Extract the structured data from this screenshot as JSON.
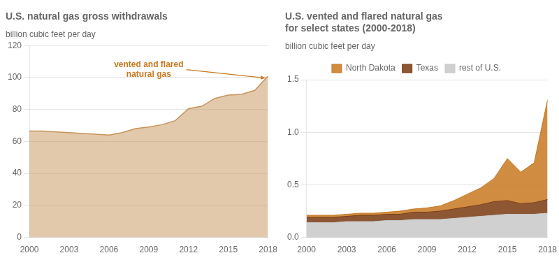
{
  "chart_data": [
    {
      "type": "area",
      "title": "U.S. natural gas gross withdrawals",
      "subtitle": "billion cubic feet per day",
      "x": [
        2000,
        2001,
        2002,
        2003,
        2004,
        2005,
        2006,
        2007,
        2008,
        2009,
        2010,
        2011,
        2012,
        2013,
        2014,
        2015,
        2016,
        2017,
        2018
      ],
      "values": [
        66.5,
        66.5,
        66.0,
        65.5,
        65.0,
        64.5,
        64.0,
        65.5,
        68.0,
        69.0,
        70.5,
        73.0,
        80.5,
        82.0,
        87.0,
        89.0,
        89.5,
        92.0,
        101.0
      ],
      "color": "#c8935a",
      "annotations": [
        {
          "text": "vented and flared\nnatural gas",
          "color": "#c87820"
        }
      ],
      "xlim": [
        2000,
        2018
      ],
      "xticks": [
        2000,
        2003,
        2006,
        2009,
        2012,
        2015,
        2018
      ],
      "ylim": [
        0,
        120
      ],
      "yticks": [
        0,
        20,
        40,
        60,
        80,
        100,
        120
      ],
      "grid": true
    },
    {
      "type": "area",
      "stacked": true,
      "title": "U.S. vented and flared natural gas\nfor select states (2000-2018)",
      "subtitle": "billion cubic feet per day",
      "x": [
        2000,
        2001,
        2002,
        2003,
        2004,
        2005,
        2006,
        2007,
        2008,
        2009,
        2010,
        2011,
        2012,
        2013,
        2014,
        2015,
        2016,
        2017,
        2018
      ],
      "series": [
        {
          "name": "rest of U.S.",
          "color": "#c8c8c8",
          "values": [
            0.14,
            0.14,
            0.14,
            0.15,
            0.15,
            0.15,
            0.16,
            0.16,
            0.17,
            0.17,
            0.17,
            0.18,
            0.19,
            0.2,
            0.21,
            0.22,
            0.22,
            0.22,
            0.23
          ]
        },
        {
          "name": "Texas",
          "color": "#7a3a10",
          "values": [
            0.05,
            0.05,
            0.05,
            0.05,
            0.06,
            0.06,
            0.06,
            0.06,
            0.07,
            0.07,
            0.08,
            0.09,
            0.1,
            0.11,
            0.13,
            0.13,
            0.1,
            0.11,
            0.13
          ]
        },
        {
          "name": "North Dakota",
          "color": "#c87820",
          "values": [
            0.02,
            0.02,
            0.02,
            0.02,
            0.02,
            0.02,
            0.02,
            0.03,
            0.03,
            0.04,
            0.05,
            0.08,
            0.12,
            0.16,
            0.22,
            0.4,
            0.3,
            0.38,
            0.95
          ]
        }
      ],
      "xlim": [
        2000,
        2018
      ],
      "xticks": [
        2000,
        2003,
        2006,
        2009,
        2012,
        2015,
        2018
      ],
      "ylim": [
        0.0,
        1.5
      ],
      "yticks": [
        {
          "value": 0.0,
          "label": "0.0"
        },
        0.5,
        {
          "value": 1.0,
          "label": "1.0"
        },
        1.5
      ],
      "grid": true,
      "legend": "top"
    }
  ]
}
